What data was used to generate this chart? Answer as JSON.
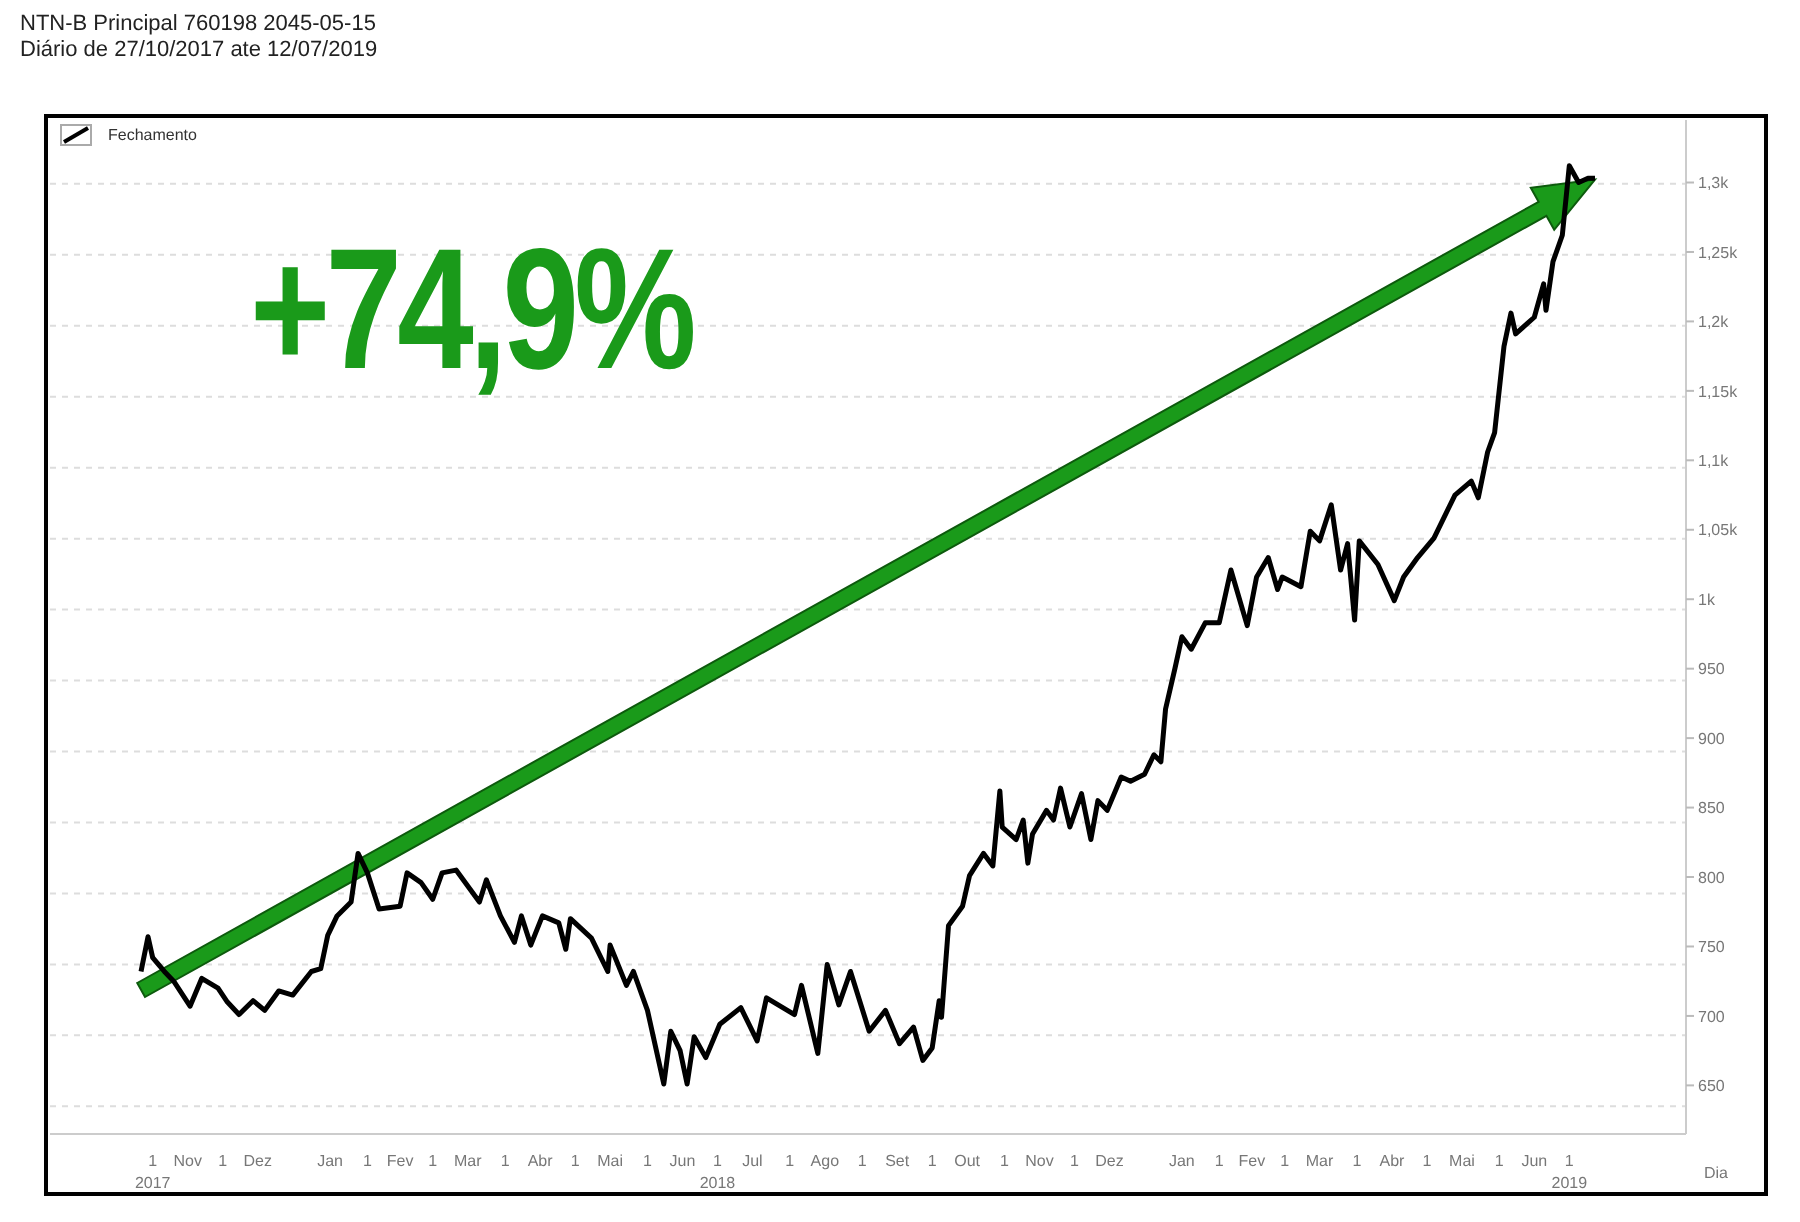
{
  "chart_data": {
    "type": "line",
    "title": "NTN-B Principal 760198 2045-05-15",
    "subtitle": "Diário de 27/10/2017 ate 12/07/2019",
    "xlabel": "Dia",
    "annotations": [
      "+74,9%"
    ],
    "x": [
      "2017-10-27",
      "2017-10-30",
      "2017-11-01",
      "2017-11-06",
      "2017-11-10",
      "2017-11-17",
      "2017-11-22",
      "2017-11-29",
      "2017-12-03",
      "2017-12-08",
      "2017-12-14",
      "2017-12-19",
      "2017-12-25",
      "2017-12-31",
      "2018-01-08",
      "2018-01-12",
      "2018-01-15",
      "2018-01-19",
      "2018-01-25",
      "2018-01-28",
      "2018-02-01",
      "2018-02-06",
      "2018-02-15",
      "2018-02-18",
      "2018-02-24",
      "2018-03-01",
      "2018-03-05",
      "2018-03-11",
      "2018-03-21",
      "2018-03-24",
      "2018-03-30",
      "2018-04-05",
      "2018-04-08",
      "2018-04-12",
      "2018-04-17",
      "2018-04-24",
      "2018-04-27",
      "2018-04-29",
      "2018-05-08",
      "2018-05-15",
      "2018-05-16",
      "2018-05-23",
      "2018-05-26",
      "2018-06-01",
      "2018-06-08",
      "2018-06-11",
      "2018-06-15",
      "2018-06-18",
      "2018-06-21",
      "2018-06-26",
      "2018-07-02",
      "2018-07-11",
      "2018-07-18",
      "2018-07-22",
      "2018-08-03",
      "2018-08-06",
      "2018-08-13",
      "2018-08-17",
      "2018-08-22",
      "2018-08-27",
      "2018-09-04",
      "2018-09-11",
      "2018-09-17",
      "2018-09-23",
      "2018-09-27",
      "2018-10-01",
      "2018-10-04",
      "2018-10-05",
      "2018-10-08",
      "2018-10-14",
      "2018-10-17",
      "2018-10-23",
      "2018-10-27",
      "2018-10-30",
      "2018-10-31",
      "2018-11-06",
      "2018-11-09",
      "2018-11-11",
      "2018-11-13",
      "2018-11-19",
      "2018-11-22",
      "2018-11-25",
      "2018-11-29",
      "2018-12-04",
      "2018-12-08",
      "2018-12-11",
      "2018-12-15",
      "2018-12-21",
      "2018-12-25",
      "2018-12-31",
      "2019-01-04",
      "2019-01-07",
      "2019-01-09",
      "2019-01-13",
      "2019-01-16",
      "2019-01-20",
      "2019-01-26",
      "2019-02-01",
      "2019-02-06",
      "2019-02-13",
      "2019-02-17",
      "2019-02-22",
      "2019-02-26",
      "2019-02-28",
      "2019-03-08",
      "2019-03-12",
      "2019-03-16",
      "2019-03-21",
      "2019-03-25",
      "2019-03-28",
      "2019-03-31",
      "2019-04-02",
      "2019-04-10",
      "2019-04-17",
      "2019-04-21",
      "2019-04-27",
      "2019-05-04",
      "2019-05-13",
      "2019-05-20",
      "2019-05-23",
      "2019-05-27",
      "2019-05-30",
      "2019-06-03",
      "2019-06-06",
      "2019-06-08",
      "2019-06-16",
      "2019-06-20",
      "2019-06-21",
      "2019-06-24",
      "2019-06-28",
      "2019-07-01",
      "2019-07-05",
      "2019-07-09",
      "2019-07-12"
    ],
    "series": [
      {
        "name": "Fechamento",
        "color": "#000000",
        "values": [
          732,
          757,
          742,
          732,
          725,
          707,
          727,
          720,
          710,
          701,
          711,
          704,
          718,
          715,
          732,
          734,
          758,
          772,
          782,
          817,
          803,
          777,
          779,
          803,
          796,
          784,
          803,
          805,
          782,
          798,
          772,
          753,
          772,
          751,
          772,
          767,
          748,
          770,
          756,
          732,
          751,
          722,
          732,
          704,
          651,
          689,
          675,
          651,
          685,
          670,
          694,
          706,
          682,
          713,
          701,
          722,
          673,
          737,
          708,
          732,
          689,
          704,
          680,
          692,
          668,
          677,
          711,
          699,
          765,
          779,
          801,
          817,
          808,
          862,
          836,
          827,
          841,
          810,
          831,
          848,
          841,
          864,
          836,
          860,
          827,
          855,
          848,
          872,
          869,
          874,
          888,
          883,
          921,
          950,
          973,
          964,
          983,
          983,
          1021,
          981,
          1016,
          1030,
          1007,
          1016,
          1009,
          1049,
          1042,
          1068,
          1021,
          1040,
          985,
          1042,
          1025,
          999,
          1016,
          1030,
          1044,
          1075,
          1085,
          1073,
          1106,
          1120,
          1182,
          1206,
          1191,
          1203,
          1227,
          1208,
          1243,
          1262,
          1312,
          1300,
          1303,
          1303
        ]
      }
    ],
    "xlim": [
      "2017-09-18",
      "2019-08-20"
    ],
    "xticks": [
      {
        "value": "2017-11-01",
        "label": "1\n2017"
      },
      {
        "value": "2017-11-16",
        "label": "Nov"
      },
      {
        "value": "2017-12-01",
        "label": "1"
      },
      {
        "value": "2017-12-16",
        "label": "Dez"
      },
      {
        "value": "2018-01-16",
        "label": "Jan"
      },
      {
        "value": "2018-02-01",
        "label": "1"
      },
      {
        "value": "2018-02-15",
        "label": "Fev"
      },
      {
        "value": "2018-03-01",
        "label": "1"
      },
      {
        "value": "2018-03-16",
        "label": "Mar"
      },
      {
        "value": "2018-04-01",
        "label": "1"
      },
      {
        "value": "2018-04-16",
        "label": "Abr"
      },
      {
        "value": "2018-05-01",
        "label": "1"
      },
      {
        "value": "2018-05-16",
        "label": "Mai"
      },
      {
        "value": "2018-06-01",
        "label": "1"
      },
      {
        "value": "2018-06-16",
        "label": "Jun"
      },
      {
        "value": "2018-07-01",
        "label": "1\n2018"
      },
      {
        "value": "2018-07-16",
        "label": "Jul"
      },
      {
        "value": "2018-08-01",
        "label": "1"
      },
      {
        "value": "2018-08-16",
        "label": "Ago"
      },
      {
        "value": "2018-09-01",
        "label": "1"
      },
      {
        "value": "2018-09-16",
        "label": "Set"
      },
      {
        "value": "2018-10-01",
        "label": "1"
      },
      {
        "value": "2018-10-16",
        "label": "Out"
      },
      {
        "value": "2018-11-01",
        "label": "1"
      },
      {
        "value": "2018-11-16",
        "label": "Nov"
      },
      {
        "value": "2018-12-01",
        "label": "1"
      },
      {
        "value": "2018-12-16",
        "label": "Dez"
      },
      {
        "value": "2019-01-16",
        "label": "Jan"
      },
      {
        "value": "2019-02-01",
        "label": "1"
      },
      {
        "value": "2019-02-15",
        "label": "Fev"
      },
      {
        "value": "2019-03-01",
        "label": "1"
      },
      {
        "value": "2019-03-16",
        "label": "Mar"
      },
      {
        "value": "2019-04-01",
        "label": "1"
      },
      {
        "value": "2019-04-16",
        "label": "Abr"
      },
      {
        "value": "2019-05-01",
        "label": "1"
      },
      {
        "value": "2019-05-16",
        "label": "Mai"
      },
      {
        "value": "2019-06-01",
        "label": "1"
      },
      {
        "value": "2019-06-16",
        "label": "Jun"
      },
      {
        "value": "2019-07-01",
        "label": "1\n2019"
      }
    ],
    "ylim": [
      615,
      1345
    ],
    "yticks": [
      650,
      700,
      750,
      800,
      850,
      900,
      950,
      {
        "value": 1000,
        "label": "1k"
      },
      {
        "value": 1050,
        "label": "1,05k"
      },
      {
        "value": 1100,
        "label": "1,1k"
      },
      {
        "value": 1150,
        "label": "1,15k"
      },
      {
        "value": 1200,
        "label": "1,2k"
      },
      {
        "value": 1250,
        "label": "1,25k"
      },
      {
        "value": 1300,
        "label": "1,3k"
      }
    ],
    "grid": "y",
    "legend": "top left",
    "marker": "none",
    "line_style": "solid"
  }
}
